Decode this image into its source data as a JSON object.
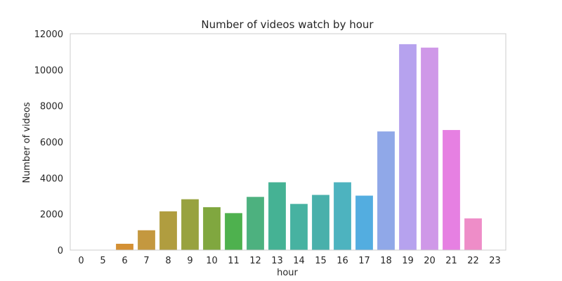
{
  "chart_data": {
    "type": "bar",
    "title": "Number of videos watch by hour",
    "xlabel": "hour",
    "ylabel": "Number of videos",
    "categories": [
      "0",
      "5",
      "6",
      "7",
      "8",
      "9",
      "10",
      "11",
      "12",
      "13",
      "14",
      "15",
      "16",
      "17",
      "18",
      "19",
      "20",
      "21",
      "22",
      "23"
    ],
    "values": [
      10,
      10,
      350,
      1100,
      2150,
      2820,
      2380,
      2050,
      2950,
      3760,
      2560,
      3060,
      3760,
      3020,
      6580,
      11420,
      11230,
      6660,
      1760,
      10
    ],
    "colors": [
      "#e8898f",
      "#e89a66",
      "#d49033",
      "#c4983f",
      "#b09d3f",
      "#98a23f",
      "#80a73f",
      "#4eb14e",
      "#4db17f",
      "#45b294",
      "#47b2a1",
      "#49b0ab",
      "#4db3bf",
      "#53ade0",
      "#90a8e8",
      "#b6a2ee",
      "#cf98e8",
      "#e680e2",
      "#ee8dc8",
      "#f08fb0"
    ],
    "ylim": [
      0,
      12000
    ],
    "yticks": [
      0,
      2000,
      4000,
      6000,
      8000,
      10000,
      12000
    ],
    "grid": false,
    "legend": "none"
  }
}
